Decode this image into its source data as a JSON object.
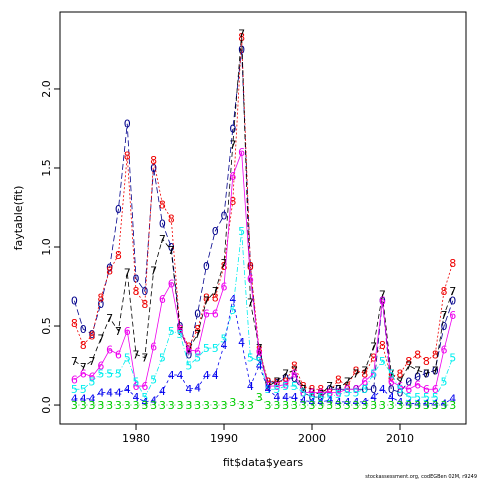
{
  "chart_data": {
    "type": "line",
    "xlabel": "fit$data$years",
    "ylabel": "faytable(fit)",
    "footer": "stockassessment.org, codEGBen 02M, r9249",
    "x": [
      1973,
      1974,
      1975,
      1976,
      1977,
      1978,
      1979,
      1980,
      1981,
      1982,
      1983,
      1984,
      1985,
      1986,
      1987,
      1988,
      1989,
      1990,
      1991,
      1992,
      1993,
      1994,
      1995,
      1996,
      1997,
      1998,
      1999,
      2000,
      2001,
      2002,
      2003,
      2004,
      2005,
      2006,
      2007,
      2008,
      2009,
      2010,
      2011,
      2012,
      2013,
      2014,
      2015,
      2016
    ],
    "xlim": [
      1971.36,
      2017.5
    ],
    "xticks": [
      1980,
      1990,
      2000,
      2010
    ],
    "ylim": [
      -0.12,
      2.487
    ],
    "yticks": [
      {
        "value": 0,
        "label": "0.0"
      },
      {
        "value": 0.5,
        "label": "0.5"
      },
      {
        "value": 1,
        "label": "1.0"
      },
      {
        "value": 1.5,
        "label": "1.5"
      },
      {
        "value": 2,
        "label": "2.0"
      }
    ],
    "series": [
      {
        "name": "0",
        "color": "#00008b",
        "values": [
          0.66,
          0.48,
          0.45,
          0.64,
          0.87,
          1.24,
          1.78,
          0.8,
          0.72,
          1.5,
          1.15,
          1.0,
          0.5,
          0.32,
          0.58,
          0.88,
          1.1,
          1.2,
          1.75,
          2.25,
          0.88,
          0.3,
          0.15,
          0.14,
          0.17,
          0.17,
          0.08,
          0.05,
          0.05,
          0.1,
          0.1,
          0.1,
          0.1,
          0.1,
          0.1,
          0.66,
          0.1,
          0.08,
          0.15,
          0.18,
          0.2,
          0.22,
          0.5,
          0.66
        ]
      },
      {
        "name": "8",
        "color": "#ee0000",
        "values": [
          0.52,
          0.38,
          0.44,
          0.68,
          0.85,
          0.95,
          1.58,
          0.72,
          0.64,
          1.55,
          1.27,
          1.18,
          0.48,
          0.37,
          0.48,
          0.68,
          0.68,
          0.88,
          1.29,
          2.33,
          0.88,
          0.35,
          0.15,
          0.15,
          0.15,
          0.25,
          0.12,
          0.1,
          0.1,
          0.08,
          0.16,
          0.12,
          0.22,
          0.2,
          0.3,
          0.38,
          0.18,
          0.2,
          0.28,
          0.32,
          0.28,
          0.32,
          0.72,
          0.9
        ]
      },
      {
        "name": "7",
        "color": "#000000",
        "values": [
          0.28,
          0.24,
          0.28,
          0.42,
          0.55,
          0.47,
          0.84,
          0.32,
          0.3,
          0.85,
          1.05,
          0.98,
          0.47,
          0.35,
          0.45,
          0.66,
          0.72,
          0.9,
          1.65,
          2.35,
          0.65,
          0.36,
          0.12,
          0.15,
          0.2,
          0.22,
          0.1,
          0.08,
          0.07,
          0.12,
          0.1,
          0.15,
          0.2,
          0.22,
          0.37,
          0.7,
          0.2,
          0.15,
          0.25,
          0.22,
          0.2,
          0.22,
          0.57,
          0.72
        ]
      },
      {
        "name": "6",
        "color": "#ee00ee",
        "values": [
          0.16,
          0.2,
          0.18,
          0.25,
          0.35,
          0.32,
          0.47,
          0.12,
          0.12,
          0.37,
          0.67,
          0.77,
          0.48,
          0.35,
          0.34,
          0.58,
          0.58,
          0.75,
          1.45,
          1.6,
          0.8,
          0.34,
          0.12,
          0.12,
          0.13,
          0.2,
          0.08,
          0.08,
          0.08,
          0.08,
          0.08,
          0.1,
          0.1,
          0.15,
          0.2,
          0.66,
          0.15,
          0.12,
          0.1,
          0.13,
          0.1,
          0.1,
          0.35,
          0.57
        ]
      },
      {
        "name": "5",
        "color": "#00eeee",
        "values": [
          0.1,
          0.1,
          0.15,
          0.2,
          0.2,
          0.2,
          0.3,
          0.15,
          0.05,
          0.16,
          0.3,
          0.47,
          0.45,
          0.25,
          0.3,
          0.36,
          0.36,
          0.42,
          0.6,
          1.1,
          0.3,
          0.28,
          0.1,
          0.1,
          0.12,
          0.12,
          0.08,
          0.05,
          0.05,
          0.05,
          0.07,
          0.08,
          0.08,
          0.1,
          0.2,
          0.28,
          0.2,
          0.1,
          0.05,
          0.05,
          0.05,
          0.05,
          0.15,
          0.3
        ]
      },
      {
        "name": "4",
        "color": "#0000ee",
        "values": [
          0.04,
          0.04,
          0.04,
          0.08,
          0.08,
          0.08,
          0.1,
          0.05,
          0.02,
          0.03,
          0.09,
          0.19,
          0.19,
          0.1,
          0.11,
          0.19,
          0.19,
          0.38,
          0.67,
          0.4,
          0.12,
          0.25,
          0.1,
          0.05,
          0.05,
          0.05,
          0.03,
          0.02,
          0.02,
          0.03,
          0.02,
          0.02,
          0.02,
          0.02,
          0.05,
          0.1,
          0.05,
          0.02,
          0.01,
          0.01,
          0.01,
          0.01,
          0.01,
          0.04
        ]
      },
      {
        "name": "3",
        "color": "#00cd00",
        "values": [
          0,
          0,
          0,
          0,
          0,
          0,
          0,
          0,
          0,
          0,
          0,
          0,
          0,
          0,
          0,
          0,
          0,
          0,
          0.02,
          0,
          0,
          0.05,
          0,
          0,
          0,
          0,
          0,
          0,
          0,
          0,
          0,
          0,
          0,
          0,
          0,
          0,
          0,
          0,
          0,
          0,
          0,
          0,
          0,
          0
        ]
      }
    ]
  }
}
